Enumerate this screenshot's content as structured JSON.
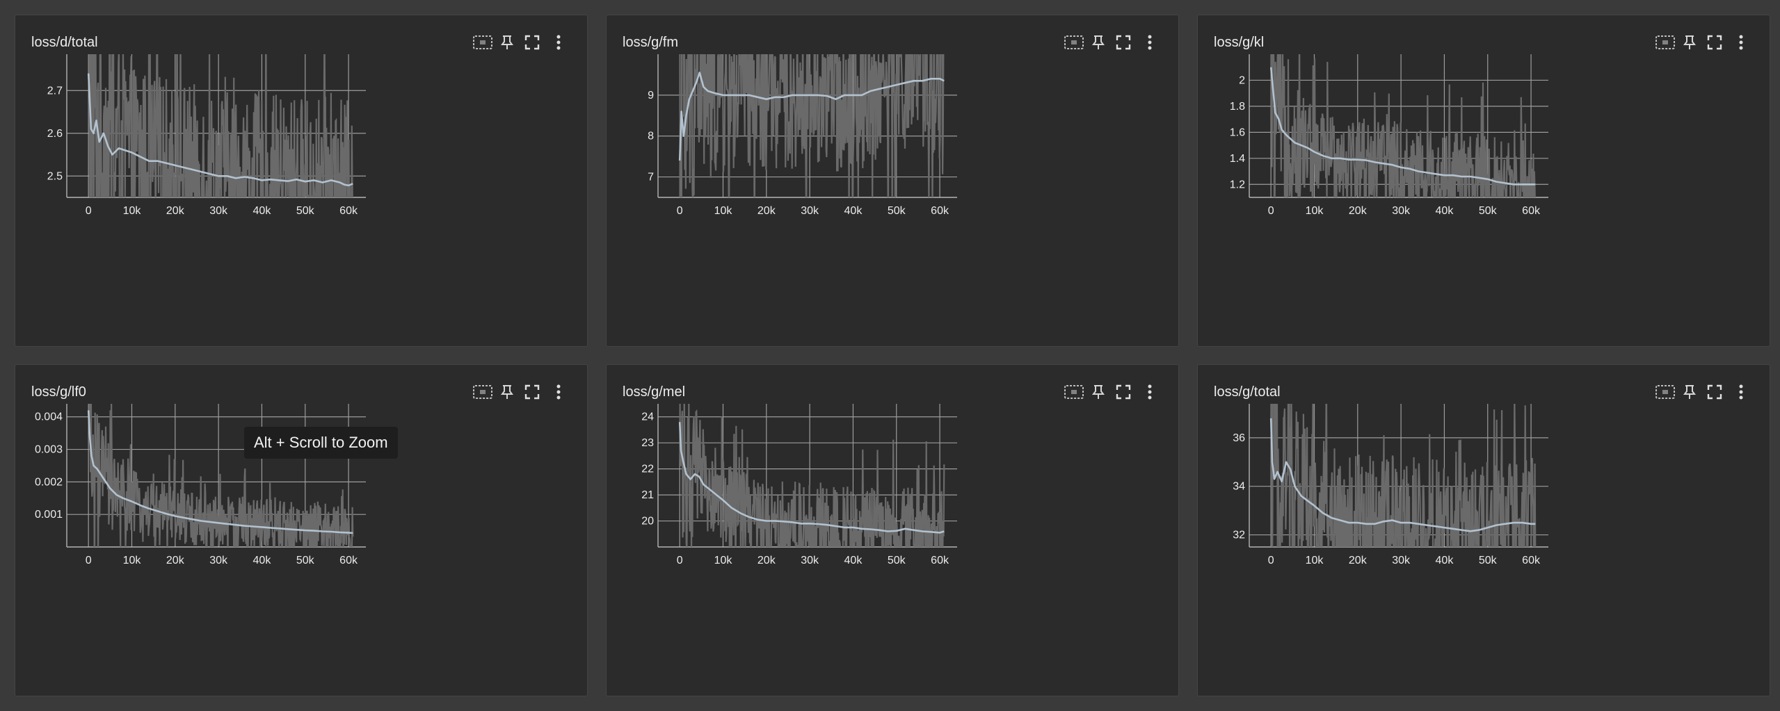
{
  "icons": {
    "select": "select-region-icon",
    "pin": "pin-icon",
    "fullscreen": "fullscreen-icon",
    "more": "more-vert-icon"
  },
  "colors": {
    "smoothed": "#b3c2cf",
    "raw": "#6a6a6a",
    "grid": "#9c9c9c",
    "tick_text": "#ececec"
  },
  "tooltip": {
    "text": "Alt + Scroll to Zoom"
  },
  "cards": [
    {
      "title": "loss/d/total",
      "chart_data": {
        "type": "line",
        "title": "loss/d/total",
        "xlim": [
          -5000,
          64000
        ],
        "ylim": [
          2.45,
          2.785
        ],
        "x_ticks": [
          0,
          10000,
          20000,
          30000,
          40000,
          50000,
          60000
        ],
        "x_tick_labels": [
          "0",
          "10k",
          "20k",
          "30k",
          "40k",
          "50k",
          "60k"
        ],
        "y_ticks": [
          2.5,
          2.6,
          2.7
        ],
        "y_tick_labels": [
          "2.5",
          "2.6",
          "2.7"
        ],
        "grid": true,
        "raw_spread": 0.2,
        "series": [
          {
            "x": [
              0,
              600,
              1200,
              1800,
              2500,
              3500,
              4500,
              5500,
              7000,
              8500,
              10000,
              12000,
              14000,
              16000,
              18000,
              20000,
              22000,
              24000,
              26000,
              28000,
              30000,
              32000,
              34000,
              36000,
              38000,
              40000,
              42000,
              44000,
              46000,
              48000,
              50000,
              52000,
              54000,
              56000,
              58000,
              59000,
              60000,
              61000
            ],
            "y": [
              2.74,
              2.61,
              2.6,
              2.63,
              2.58,
              2.6,
              2.57,
              2.55,
              2.565,
              2.56,
              2.555,
              2.545,
              2.535,
              2.535,
              2.53,
              2.525,
              2.52,
              2.515,
              2.51,
              2.505,
              2.5,
              2.5,
              2.495,
              2.498,
              2.495,
              2.49,
              2.492,
              2.49,
              2.488,
              2.492,
              2.487,
              2.49,
              2.485,
              2.49,
              2.485,
              2.48,
              2.478,
              2.482
            ]
          }
        ]
      }
    },
    {
      "title": "loss/g/fm",
      "chart_data": {
        "type": "line",
        "title": "loss/g/fm",
        "xlim": [
          -5000,
          64000
        ],
        "ylim": [
          6.5,
          10.0
        ],
        "x_ticks": [
          0,
          10000,
          20000,
          30000,
          40000,
          50000,
          60000
        ],
        "x_tick_labels": [
          "0",
          "10k",
          "20k",
          "30k",
          "40k",
          "50k",
          "60k"
        ],
        "y_ticks": [
          7,
          8,
          9
        ],
        "y_tick_labels": [
          "7",
          "8",
          "9"
        ],
        "grid": true,
        "raw_spread": 1.8,
        "series": [
          {
            "x": [
              0,
              400,
              900,
              1500,
              2200,
              3000,
              3800,
              4600,
              5500,
              6500,
              8000,
              10000,
              12000,
              14000,
              16000,
              18000,
              20000,
              22000,
              24000,
              26000,
              28000,
              30000,
              32000,
              34000,
              36000,
              38000,
              40000,
              42000,
              44000,
              46000,
              48000,
              50000,
              52000,
              54000,
              56000,
              58000,
              60000,
              61000
            ],
            "y": [
              7.4,
              8.6,
              8.0,
              8.5,
              8.9,
              9.1,
              9.3,
              9.55,
              9.2,
              9.1,
              9.05,
              9.0,
              9.0,
              9.0,
              9.0,
              8.95,
              8.9,
              8.95,
              8.95,
              9.0,
              9.0,
              9.0,
              9.0,
              8.98,
              8.9,
              9.0,
              9.0,
              9.0,
              9.1,
              9.15,
              9.2,
              9.25,
              9.3,
              9.35,
              9.35,
              9.4,
              9.4,
              9.35
            ]
          }
        ]
      }
    },
    {
      "title": "loss/g/kl",
      "chart_data": {
        "type": "line",
        "title": "loss/g/kl",
        "xlim": [
          -5000,
          64000
        ],
        "ylim": [
          1.1,
          2.2
        ],
        "x_ticks": [
          0,
          10000,
          20000,
          30000,
          40000,
          50000,
          60000
        ],
        "x_tick_labels": [
          "0",
          "10k",
          "20k",
          "30k",
          "40k",
          "50k",
          "60k"
        ],
        "y_ticks": [
          1.2,
          1.4,
          1.6,
          1.8,
          2.0
        ],
        "y_tick_labels": [
          "1.2",
          "1.4",
          "1.6",
          "1.8",
          "2"
        ],
        "grid": true,
        "raw_spread": 0.35,
        "series": [
          {
            "x": [
              0,
              400,
              1000,
              1800,
              2500,
              3500,
              4500,
              5500,
              7000,
              8500,
              10000,
              12000,
              14000,
              16000,
              18000,
              20000,
              22000,
              24000,
              26000,
              28000,
              30000,
              32000,
              34000,
              36000,
              38000,
              40000,
              42000,
              44000,
              46000,
              48000,
              50000,
              52000,
              54000,
              56000,
              58000,
              60000,
              61000
            ],
            "y": [
              2.1,
              1.95,
              1.75,
              1.7,
              1.62,
              1.58,
              1.55,
              1.52,
              1.5,
              1.48,
              1.45,
              1.42,
              1.4,
              1.4,
              1.39,
              1.39,
              1.385,
              1.37,
              1.36,
              1.35,
              1.33,
              1.32,
              1.3,
              1.29,
              1.28,
              1.27,
              1.27,
              1.26,
              1.26,
              1.25,
              1.24,
              1.22,
              1.21,
              1.2,
              1.2,
              1.2,
              1.2
            ]
          }
        ]
      }
    },
    {
      "title": "loss/g/lf0",
      "chart_data": {
        "type": "line",
        "title": "loss/g/lf0",
        "xlim": [
          -5000,
          64000
        ],
        "ylim": [
          0.0,
          0.0044
        ],
        "x_ticks": [
          0,
          10000,
          20000,
          30000,
          40000,
          50000,
          60000
        ],
        "x_tick_labels": [
          "0",
          "10k",
          "20k",
          "30k",
          "40k",
          "50k",
          "60k"
        ],
        "y_ticks": [
          0.001,
          0.002,
          0.003,
          0.004
        ],
        "y_tick_labels": [
          "0.001",
          "0.002",
          "0.003",
          "0.004"
        ],
        "grid": true,
        "raw_spread": 0.0009,
        "series": [
          {
            "x": [
              0,
              300,
              700,
              1200,
              2000,
              3000,
              4000,
              5000,
              6500,
              8000,
              10000,
              12000,
              14000,
              16000,
              18000,
              20000,
              22000,
              24000,
              26000,
              28000,
              30000,
              32000,
              34000,
              36000,
              38000,
              40000,
              42000,
              44000,
              46000,
              48000,
              50000,
              52000,
              54000,
              56000,
              58000,
              60000,
              61000
            ],
            "y": [
              0.0042,
              0.0034,
              0.0028,
              0.0025,
              0.0024,
              0.0022,
              0.002,
              0.0018,
              0.0016,
              0.0015,
              0.0014,
              0.00128,
              0.00118,
              0.0011,
              0.00102,
              0.00095,
              0.0009,
              0.00085,
              0.0008,
              0.00077,
              0.00074,
              0.00071,
              0.00068,
              0.00065,
              0.00063,
              0.00061,
              0.00059,
              0.00057,
              0.00055,
              0.00053,
              0.00051,
              0.0005,
              0.00048,
              0.00047,
              0.00045,
              0.00044,
              0.00043
            ]
          }
        ]
      }
    },
    {
      "title": "loss/g/mel",
      "chart_data": {
        "type": "line",
        "title": "loss/g/mel",
        "xlim": [
          -5000,
          64000
        ],
        "ylim": [
          19.0,
          24.5
        ],
        "x_ticks": [
          0,
          10000,
          20000,
          30000,
          40000,
          50000,
          60000
        ],
        "x_tick_labels": [
          "0",
          "10k",
          "20k",
          "30k",
          "40k",
          "50k",
          "60k"
        ],
        "y_ticks": [
          20,
          21,
          22,
          23,
          24
        ],
        "y_tick_labels": [
          "20",
          "21",
          "22",
          "23",
          "24"
        ],
        "grid": true,
        "raw_spread": 1.6,
        "series": [
          {
            "x": [
              0,
              300,
              800,
              1500,
              2500,
              3500,
              4500,
              5500,
              7000,
              8500,
              10000,
              12000,
              14000,
              16000,
              18000,
              20000,
              22000,
              24000,
              26000,
              28000,
              30000,
              32000,
              34000,
              36000,
              38000,
              40000,
              42000,
              44000,
              46000,
              48000,
              50000,
              52000,
              54000,
              56000,
              58000,
              60000,
              61000
            ],
            "y": [
              23.8,
              22.7,
              22.3,
              21.8,
              21.6,
              21.8,
              21.7,
              21.4,
              21.2,
              21.0,
              20.8,
              20.5,
              20.3,
              20.15,
              20.05,
              20.0,
              20.0,
              19.98,
              19.95,
              19.9,
              19.9,
              19.88,
              19.85,
              19.8,
              19.75,
              19.75,
              19.7,
              19.68,
              19.65,
              19.6,
              19.62,
              19.7,
              19.65,
              19.6,
              19.58,
              19.55,
              19.6
            ]
          }
        ]
      }
    },
    {
      "title": "loss/g/total",
      "chart_data": {
        "type": "line",
        "title": "loss/g/total",
        "xlim": [
          -5000,
          64000
        ],
        "ylim": [
          31.5,
          37.4
        ],
        "x_ticks": [
          0,
          10000,
          20000,
          30000,
          40000,
          50000,
          60000
        ],
        "x_tick_labels": [
          "0",
          "10k",
          "20k",
          "30k",
          "40k",
          "50k",
          "60k"
        ],
        "y_ticks": [
          32,
          34,
          36
        ],
        "y_tick_labels": [
          "32",
          "34",
          "36"
        ],
        "grid": true,
        "raw_spread": 2.8,
        "series": [
          {
            "x": [
              0,
              300,
              800,
              1500,
              2500,
              3500,
              4500,
              5500,
              7000,
              8500,
              10000,
              12000,
              14000,
              16000,
              18000,
              20000,
              22000,
              24000,
              26000,
              28000,
              30000,
              32000,
              34000,
              36000,
              38000,
              40000,
              42000,
              44000,
              46000,
              48000,
              50000,
              52000,
              54000,
              56000,
              58000,
              60000,
              61000
            ],
            "y": [
              36.8,
              35.0,
              34.3,
              34.6,
              34.2,
              35.0,
              34.7,
              34.0,
              33.6,
              33.4,
              33.2,
              32.9,
              32.7,
              32.6,
              32.5,
              32.5,
              32.45,
              32.45,
              32.55,
              32.6,
              32.5,
              32.5,
              32.45,
              32.4,
              32.35,
              32.3,
              32.25,
              32.2,
              32.15,
              32.2,
              32.3,
              32.4,
              32.45,
              32.5,
              32.5,
              32.45,
              32.45
            ]
          }
        ]
      }
    }
  ]
}
